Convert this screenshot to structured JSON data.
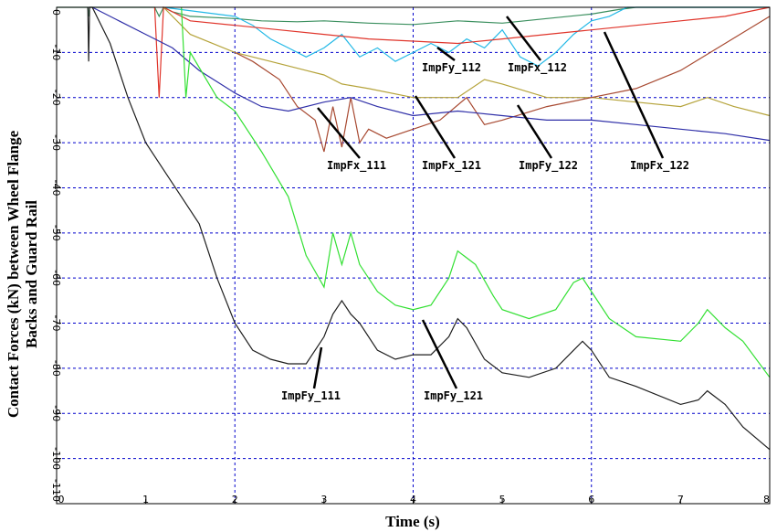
{
  "chart_data": {
    "type": "line",
    "xlabel": "Time (s)",
    "ylabel_line1": "Contact Forces (kN) between Wheel Flange",
    "ylabel_line2": "Backs and Guard Rail",
    "xlim": [
      0,
      8
    ],
    "ylim": [
      -110,
      0
    ],
    "xticks": [
      0,
      1,
      2,
      3,
      4,
      5,
      6,
      7,
      8
    ],
    "yticks": [
      0,
      -10,
      -20,
      -30,
      -40,
      -50,
      -60,
      -70,
      -80,
      -90,
      -100,
      -110
    ],
    "grid": true,
    "grid_x": [
      2,
      4,
      6,
      8
    ],
    "series": [
      {
        "name": "ImpFx_112",
        "color": "#3a8f5e",
        "x": [
          0,
          0.35,
          0.36,
          0.37,
          1.1,
          1.15,
          1.2,
          1.3,
          1.5,
          2.0,
          2.3,
          2.7,
          3.0,
          3.5,
          4.0,
          4.5,
          5.0,
          5.5,
          6.0,
          6.3,
          6.5,
          7.0,
          8.0
        ],
        "y": [
          0,
          0,
          -2,
          0,
          0,
          -2,
          0,
          -1,
          -2,
          -2.5,
          -3,
          -3.2,
          -3,
          -3.5,
          -3.8,
          -3,
          -3.5,
          -2.5,
          -1.5,
          -0.5,
          0,
          0,
          0
        ]
      },
      {
        "name": "ImpFy_112",
        "color": "#22b8e6",
        "x": [
          1.2,
          2.0,
          2.2,
          2.4,
          2.6,
          2.8,
          3.0,
          3.2,
          3.4,
          3.6,
          3.8,
          4.0,
          4.2,
          4.4,
          4.6,
          4.8,
          5.0,
          5.2,
          5.4,
          5.6,
          5.8,
          6.0,
          6.2,
          6.4,
          7.0,
          8.0
        ],
        "y": [
          0,
          -2,
          -4,
          -7,
          -9,
          -11,
          -9,
          -6,
          -11,
          -9,
          -12,
          -10,
          -8,
          -10,
          -7,
          -9,
          -5,
          -11,
          -13,
          -10,
          -6,
          -3,
          -2,
          0,
          0,
          0
        ]
      },
      {
        "name": "ImpFx_122",
        "color": "#e0352b",
        "x": [
          1.1,
          1.15,
          1.2,
          1.5,
          2.0,
          2.5,
          3.0,
          3.5,
          4.0,
          4.5,
          5.0,
          5.5,
          6.0,
          6.5,
          7.0,
          7.5,
          8.0
        ],
        "y": [
          0,
          -20,
          0,
          -3,
          -4,
          -5,
          -6,
          -7,
          -7.5,
          -8,
          -7,
          -6,
          -5,
          -4,
          -3,
          -2,
          0
        ]
      },
      {
        "name": "ImpFx_121",
        "color": "#b5a33a",
        "x": [
          1.2,
          1.5,
          2.0,
          2.4,
          2.8,
          3.0,
          3.2,
          3.5,
          4.0,
          4.5,
          4.8,
          5.0,
          5.5,
          6.0,
          6.5,
          7.0,
          7.3,
          7.6,
          8.0
        ],
        "y": [
          0,
          -6,
          -10,
          -12,
          -14,
          -15,
          -17,
          -18,
          -20,
          -20,
          -16,
          -17,
          -20,
          -20,
          -21,
          -22,
          -20,
          -22,
          -24
        ]
      },
      {
        "name": "ImpFy_122",
        "color": "#a84a32",
        "x": [
          2.0,
          2.2,
          2.5,
          2.7,
          2.9,
          3.0,
          3.1,
          3.2,
          3.3,
          3.4,
          3.5,
          3.7,
          4.0,
          4.3,
          4.6,
          4.8,
          5.0,
          5.5,
          6.0,
          6.5,
          7.0,
          7.5,
          8.0
        ],
        "y": [
          -10,
          -12,
          -16,
          -22,
          -25,
          -32,
          -22,
          -31,
          -20,
          -30,
          -27,
          -29,
          -27,
          -25,
          -20,
          -26,
          -25,
          -22,
          -20,
          -18,
          -14,
          -8,
          -2
        ]
      },
      {
        "name": "ImpFx_111",
        "color": "#2f2fa8",
        "x": [
          0.4,
          0.7,
          1.0,
          1.3,
          1.6,
          2.0,
          2.3,
          2.6,
          3.0,
          3.3,
          3.6,
          4.0,
          4.5,
          5.0,
          5.5,
          6.0,
          6.5,
          7.0,
          7.5,
          8.0
        ],
        "y": [
          0,
          -3,
          -6,
          -9,
          -14,
          -19,
          -22,
          -23,
          -21,
          -20,
          -22,
          -24,
          -23,
          -24,
          -25,
          -25,
          -26,
          -27,
          -28,
          -29.5
        ]
      },
      {
        "name": "ImpFy_121",
        "color": "#33e033",
        "x": [
          1.4,
          1.45,
          1.5,
          1.8,
          2.0,
          2.3,
          2.6,
          2.8,
          3.0,
          3.1,
          3.2,
          3.3,
          3.4,
          3.6,
          3.8,
          4.0,
          4.2,
          4.4,
          4.5,
          4.7,
          4.9,
          5.0,
          5.3,
          5.6,
          5.8,
          5.9,
          6.0,
          6.2,
          6.5,
          7.0,
          7.2,
          7.3,
          7.5,
          7.7,
          8.0
        ],
        "y": [
          0,
          -20,
          -10,
          -20,
          -23,
          -32,
          -42,
          -55,
          -62,
          -50,
          -57,
          -50,
          -57,
          -63,
          -66,
          -67,
          -66,
          -60,
          -54,
          -57,
          -64,
          -67,
          -69,
          -67,
          -61,
          -60,
          -63,
          -69,
          -73,
          -74,
          -70,
          -67,
          -71,
          -74,
          -82
        ]
      },
      {
        "name": "ImpFy_111",
        "color": "#1e1e1e",
        "x": [
          0.35,
          0.36,
          0.37,
          0.4,
          0.6,
          0.8,
          1.0,
          1.2,
          1.4,
          1.6,
          1.8,
          2.0,
          2.2,
          2.4,
          2.6,
          2.8,
          3.0,
          3.1,
          3.2,
          3.3,
          3.4,
          3.6,
          3.8,
          4.0,
          4.2,
          4.4,
          4.5,
          4.6,
          4.8,
          5.0,
          5.3,
          5.6,
          5.8,
          5.9,
          6.0,
          6.2,
          6.5,
          7.0,
          7.2,
          7.3,
          7.5,
          7.7,
          8.0
        ],
        "y": [
          0,
          -12,
          0,
          0,
          -8,
          -20,
          -30,
          -36,
          -42,
          -48,
          -60,
          -70,
          -76,
          -78,
          -79,
          -79,
          -73,
          -68,
          -65,
          -68,
          -70,
          -76,
          -78,
          -77,
          -77,
          -73,
          -69,
          -71,
          -78,
          -81,
          -82,
          -80,
          -76,
          -74,
          -76,
          -82,
          -84,
          -88,
          -87,
          -85,
          -88,
          -93,
          -98
        ]
      }
    ],
    "labels": [
      {
        "text": "ImpFy_112",
        "series": "ImpFy_112"
      },
      {
        "text": "ImpFx_112",
        "series": "ImpFx_112"
      },
      {
        "text": "ImpFx_111",
        "series": "ImpFx_111"
      },
      {
        "text": "ImpFx_121",
        "series": "ImpFx_121"
      },
      {
        "text": "ImpFy_122",
        "series": "ImpFy_122"
      },
      {
        "text": "ImpFx_122",
        "series": "ImpFx_122"
      },
      {
        "text": "ImpFy_111",
        "series": "ImpFy_111"
      },
      {
        "text": "ImpFy_121",
        "series": "ImpFy_121"
      }
    ]
  }
}
